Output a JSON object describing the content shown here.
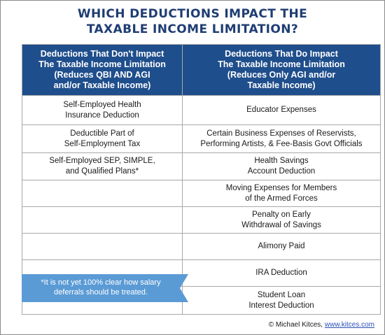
{
  "title": {
    "line1": "WHICH DEDUCTIONS IMPACT THE",
    "line2": "TAXABLE INCOME LIMITATION?"
  },
  "table": {
    "headers": [
      {
        "lines": [
          "Deductions That Don't Impact",
          "The Taxable Income Limitation",
          "(Reduces QBI AND AGI",
          "and/or Taxable Income)"
        ]
      },
      {
        "lines": [
          "Deductions That Do Impact",
          "The Taxable Income Limitation",
          "(Reduces Only AGI and/or",
          "Taxable Income)"
        ]
      }
    ],
    "rows": [
      {
        "left": [
          "Self-Employed Health",
          "Insurance Deduction"
        ],
        "right": [
          "Educator Expenses"
        ]
      },
      {
        "left": [
          "Deductible Part of",
          "Self-Employment Tax"
        ],
        "right": [
          "Certain Business Expenses of Reservists,",
          "Performing Artists, & Fee-Basis Govt Officials"
        ]
      },
      {
        "left": [
          "Self-Employed SEP, SIMPLE,",
          "and Qualified Plans*"
        ],
        "right": [
          "Health Savings",
          "Account Deduction"
        ]
      },
      {
        "left": [],
        "right": [
          "Moving Expenses for Members",
          "of the Armed Forces"
        ]
      },
      {
        "left": [],
        "right": [
          "Penalty on Early",
          "Withdrawal of Savings"
        ]
      },
      {
        "left": [],
        "right": [
          "Alimony Paid"
        ]
      },
      {
        "left": [],
        "right": [
          "IRA Deduction"
        ]
      },
      {
        "left": [],
        "right": [
          "Student Loan",
          "Interest Deduction"
        ]
      }
    ]
  },
  "note": {
    "line1": "*It is not yet 100% clear how salary",
    "line2": "deferrals should be treated."
  },
  "footer": {
    "copyright": "© Michael Kitces,",
    "link": "www.kitces.com"
  },
  "colors": {
    "title": "#1f3d73",
    "header_bg": "#1f4e8c",
    "note_bg": "#5b9bd5",
    "link": "#2a4fb8"
  }
}
